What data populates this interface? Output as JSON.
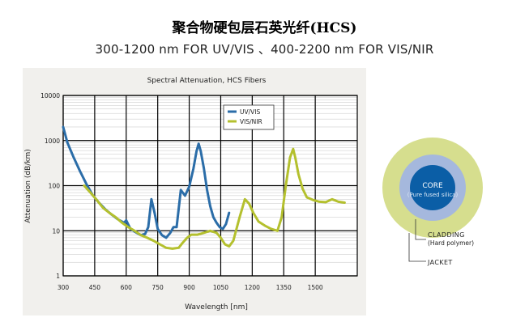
{
  "page": {
    "title": "聚合物硬包层石英光纤(HCS)",
    "subtitle": "300-1200 nm FOR UV/VIS 、400-2200 nm FOR VIS/NIR"
  },
  "chart_data": {
    "type": "line",
    "title": "Spectral Attenuation, HCS Fibers",
    "xlabel": "Wavelength [nm]",
    "ylabel": "Attenuation (dB/km)",
    "xlim": [
      300,
      1700
    ],
    "ylim": [
      1,
      10000
    ],
    "yscale": "log",
    "grid": true,
    "legend_position": "top-center",
    "x_ticks": [
      300,
      450,
      600,
      750,
      900,
      1050,
      1200,
      1350,
      1500
    ],
    "x_tick_labels": [
      "300",
      "450",
      "600",
      "750",
      "900",
      "1050",
      "1200",
      "1350",
      "1500"
    ],
    "y_ticks": [
      1,
      10,
      100,
      1000,
      10000
    ],
    "y_tick_labels": [
      "1",
      "10",
      "100",
      "1000",
      "10000"
    ],
    "series": [
      {
        "name": "UV/VIS",
        "color": "#2b6da8",
        "points": [
          [
            300,
            2000
          ],
          [
            320,
            900
          ],
          [
            350,
            420
          ],
          [
            380,
            210
          ],
          [
            410,
            110
          ],
          [
            440,
            62
          ],
          [
            470,
            42
          ],
          [
            500,
            30
          ],
          [
            530,
            23
          ],
          [
            560,
            18
          ],
          [
            590,
            15
          ],
          [
            600,
            17
          ],
          [
            620,
            11
          ],
          [
            650,
            9
          ],
          [
            670,
            8
          ],
          [
            690,
            8.5
          ],
          [
            705,
            12
          ],
          [
            720,
            50
          ],
          [
            735,
            25
          ],
          [
            750,
            11
          ],
          [
            770,
            8
          ],
          [
            790,
            7
          ],
          [
            810,
            9
          ],
          [
            825,
            12
          ],
          [
            840,
            12
          ],
          [
            860,
            80
          ],
          [
            880,
            60
          ],
          [
            900,
            95
          ],
          [
            920,
            240
          ],
          [
            935,
            580
          ],
          [
            945,
            850
          ],
          [
            955,
            580
          ],
          [
            970,
            240
          ],
          [
            985,
            80
          ],
          [
            1000,
            35
          ],
          [
            1015,
            20
          ],
          [
            1030,
            15
          ],
          [
            1045,
            12
          ],
          [
            1060,
            11
          ],
          [
            1075,
            14
          ],
          [
            1090,
            25
          ]
        ]
      },
      {
        "name": "VIS/NIR",
        "color": "#b4c02e",
        "points": [
          [
            400,
            100
          ],
          [
            430,
            70
          ],
          [
            460,
            48
          ],
          [
            490,
            32
          ],
          [
            520,
            25
          ],
          [
            550,
            20
          ],
          [
            580,
            15
          ],
          [
            610,
            12
          ],
          [
            640,
            10
          ],
          [
            670,
            8
          ],
          [
            700,
            7
          ],
          [
            730,
            6
          ],
          [
            760,
            5
          ],
          [
            790,
            4.2
          ],
          [
            820,
            4
          ],
          [
            850,
            4.2
          ],
          [
            870,
            5.5
          ],
          [
            890,
            7
          ],
          [
            910,
            8.2
          ],
          [
            940,
            8.2
          ],
          [
            970,
            9
          ],
          [
            1000,
            10
          ],
          [
            1030,
            9
          ],
          [
            1050,
            7
          ],
          [
            1070,
            5
          ],
          [
            1090,
            4.5
          ],
          [
            1110,
            6
          ],
          [
            1140,
            20
          ],
          [
            1165,
            50
          ],
          [
            1185,
            40
          ],
          [
            1205,
            25
          ],
          [
            1230,
            16
          ],
          [
            1260,
            13
          ],
          [
            1290,
            11
          ],
          [
            1320,
            10
          ],
          [
            1340,
            20
          ],
          [
            1360,
            100
          ],
          [
            1380,
            420
          ],
          [
            1395,
            650
          ],
          [
            1405,
            420
          ],
          [
            1420,
            180
          ],
          [
            1440,
            85
          ],
          [
            1460,
            55
          ],
          [
            1490,
            48
          ],
          [
            1520,
            44
          ],
          [
            1550,
            43
          ],
          [
            1580,
            50
          ],
          [
            1610,
            44
          ],
          [
            1640,
            42
          ]
        ]
      }
    ]
  },
  "fiber_diagram": {
    "core_label": "CORE",
    "core_sublabel": "(Pure fused silica)",
    "cladding_label": "CLADDING",
    "cladding_sublabel": "(Hard polymer)",
    "jacket_label": "JACKET",
    "colors": {
      "jacket": "#d6de8e",
      "cladding": "#a5b8dd",
      "core": "#0b5ea6"
    }
  }
}
